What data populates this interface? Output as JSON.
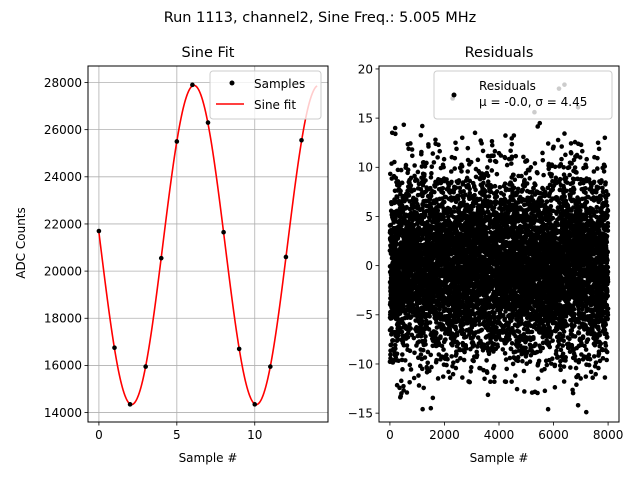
{
  "suptitle": "Run 1113, channel2, Sine Freq.: 5.005 MHz",
  "chart_data": [
    {
      "type": "line",
      "title": "Sine Fit",
      "xlabel": "Sample #",
      "ylabel": "ADC Counts",
      "xlim": [
        -0.7,
        14.7
      ],
      "ylim": [
        13600,
        28700
      ],
      "xticks": [
        0,
        5,
        10
      ],
      "yticks": [
        14000,
        16000,
        18000,
        20000,
        22000,
        24000,
        26000,
        28000
      ],
      "grid": true,
      "legend": "top-right",
      "series": [
        {
          "name": "Samples",
          "kind": "scatter",
          "color": "#000000",
          "x": [
            0,
            1,
            2,
            3,
            4,
            5,
            6,
            7,
            8,
            9,
            10,
            11,
            12,
            13
          ],
          "y": [
            21700,
            16750,
            14350,
            15950,
            20550,
            25500,
            27900,
            26300,
            21650,
            16700,
            14350,
            15950,
            20600,
            25550
          ]
        },
        {
          "name": "Sine fit",
          "kind": "line",
          "color": "#ff0000",
          "offset": 21110,
          "amplitude": 6770,
          "period": 8.0,
          "phase_sample": 0.1,
          "x_range": [
            0,
            14
          ]
        }
      ]
    },
    {
      "type": "scatter",
      "title": "Residuals",
      "xlabel": "Sample #",
      "ylabel": "",
      "xlim": [
        -400,
        8400
      ],
      "ylim": [
        -15.9,
        20.3
      ],
      "xticks": [
        0,
        2000,
        4000,
        6000,
        8000
      ],
      "yticks": [
        -15,
        -10,
        -5,
        0,
        5,
        10,
        15,
        20
      ],
      "grid": false,
      "legend": "top-right",
      "n_points": 8000,
      "mean": 0.0,
      "std": 4.45,
      "series": [
        {
          "name": "Residuals",
          "stats_text": "μ = -0.0, σ = 4.45",
          "color": "#000000"
        }
      ],
      "notable_points": [
        {
          "x": 6400,
          "y": 18.4
        },
        {
          "x": 6200,
          "y": 18.0
        },
        {
          "x": 2300,
          "y": 17.0
        },
        {
          "x": 6900,
          "y": 16.1
        },
        {
          "x": 5300,
          "y": 15.6
        },
        {
          "x": 7200,
          "y": -14.9
        },
        {
          "x": 1200,
          "y": -14.6
        },
        {
          "x": 5800,
          "y": -14.6
        },
        {
          "x": 1500,
          "y": -14.5
        },
        {
          "x": 6900,
          "y": -14.2
        },
        {
          "x": 200,
          "y": 13.4
        }
      ]
    }
  ]
}
